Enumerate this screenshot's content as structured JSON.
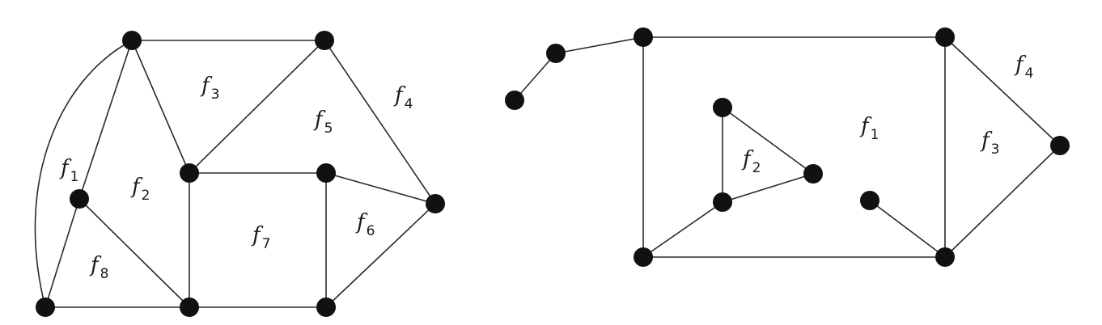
{
  "graph_left": {
    "faces": [
      {
        "letter": "f",
        "sub": "1"
      },
      {
        "letter": "f",
        "sub": "2"
      },
      {
        "letter": "f",
        "sub": "3"
      },
      {
        "letter": "f",
        "sub": "4"
      },
      {
        "letter": "f",
        "sub": "5"
      },
      {
        "letter": "f",
        "sub": "6"
      },
      {
        "letter": "f",
        "sub": "7"
      },
      {
        "letter": "f",
        "sub": "8"
      }
    ]
  },
  "graph_right": {
    "faces": [
      {
        "letter": "f",
        "sub": "1"
      },
      {
        "letter": "f",
        "sub": "2"
      },
      {
        "letter": "f",
        "sub": "3"
      },
      {
        "letter": "f",
        "sub": "4"
      }
    ]
  }
}
